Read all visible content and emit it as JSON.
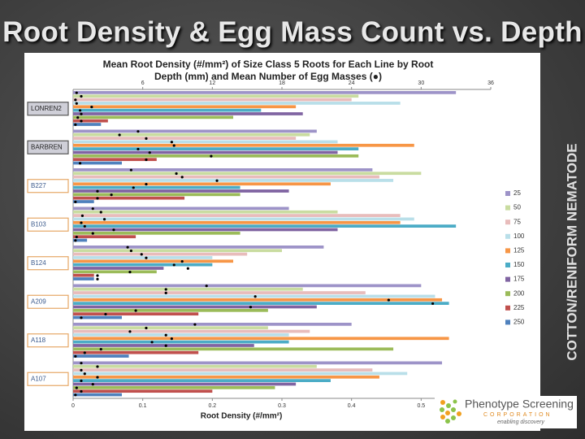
{
  "slide": {
    "title": "Root Density & Egg Mass Count vs. Depth",
    "side_label": "COTTON/RENIFORM NEMATODE"
  },
  "chart_data": {
    "type": "bar",
    "orientation": "horizontal",
    "title": "Mean Root Density (#/mm²) of Size Class 5 Roots for Each Line by Root Depth (mm) and Mean Number of Egg Masses (●)",
    "x_label": "Root Density (#/mm²)",
    "categories": [
      "LONREN2",
      "BARBREN",
      "B227",
      "B103",
      "B124",
      "A209",
      "A118",
      "A107"
    ],
    "xlim": [
      0,
      0.6
    ],
    "xticks": [
      0,
      0.1,
      0.2,
      0.3,
      0.4,
      0.5
    ],
    "x2lim": [
      0,
      36
    ],
    "x2ticks": [
      6,
      12,
      18,
      24,
      30,
      36
    ],
    "legend": "right",
    "series": [
      {
        "name": "25",
        "color": "#9d93c8",
        "values": [
          0.55,
          0.35,
          0.43,
          0.31,
          0.36,
          0.5,
          0.4,
          0.53
        ],
        "egg_masses": [
          0.3,
          5.6,
          5.0,
          1.7,
          4.7,
          11.5,
          10.5,
          0.7
        ]
      },
      {
        "name": "50",
        "color": "#c9dca0",
        "values": [
          0.41,
          0.34,
          0.5,
          0.38,
          0.3,
          0.33,
          0.28,
          0.35
        ],
        "egg_masses": [
          0.7,
          4.0,
          8.9,
          2.4,
          5.0,
          8.0,
          6.3,
          2.1
        ]
      },
      {
        "name": "75",
        "color": "#e8bcbb",
        "values": [
          0.4,
          0.32,
          0.44,
          0.47,
          0.25,
          0.42,
          0.34,
          0.43
        ],
        "egg_masses": [
          0.2,
          6.3,
          9.4,
          0.8,
          5.9,
          8.0,
          4.9,
          0.7
        ]
      },
      {
        "name": "100",
        "color": "#b9dfe9",
        "values": [
          0.47,
          0.38,
          0.46,
          0.49,
          0.2,
          0.52,
          0.31,
          0.48
        ],
        "egg_masses": [
          0.3,
          8.5,
          12.4,
          2.7,
          6.3,
          15.7,
          8.0,
          1.0
        ]
      },
      {
        "name": "125",
        "color": "#f79646",
        "values": [
          0.32,
          0.49,
          0.37,
          0.47,
          0.23,
          0.53,
          0.54,
          0.44
        ],
        "egg_masses": [
          1.6,
          8.7,
          6.3,
          0.7,
          9.4,
          27.2,
          8.5,
          2.1
        ]
      },
      {
        "name": "150",
        "color": "#4bacc6",
        "values": [
          0.27,
          0.41,
          0.24,
          0.55,
          0.2,
          0.54,
          0.31,
          0.37
        ],
        "egg_masses": [
          0.6,
          5.6,
          5.2,
          1.0,
          8.7,
          31.0,
          6.8,
          0.7
        ]
      },
      {
        "name": "175",
        "color": "#8064a2",
        "values": [
          0.33,
          0.38,
          0.31,
          0.38,
          0.13,
          0.35,
          0.26,
          0.32
        ],
        "egg_masses": [
          0.7,
          6.6,
          2.1,
          3.5,
          9.9,
          15.3,
          8.0,
          1.7
        ]
      },
      {
        "name": "200",
        "color": "#9bbb59",
        "values": [
          0.23,
          0.41,
          0.24,
          0.24,
          0.12,
          0.28,
          0.46,
          0.29
        ],
        "egg_masses": [
          0.4,
          11.9,
          3.3,
          1.7,
          4.9,
          5.4,
          2.4,
          0.3
        ]
      },
      {
        "name": "225",
        "color": "#c0504d",
        "values": [
          0.05,
          0.12,
          0.16,
          0.09,
          0.03,
          0.18,
          0.18,
          0.2
        ],
        "egg_masses": [
          0.7,
          6.3,
          2.1,
          0.3,
          2.1,
          2.8,
          1.0,
          0.7
        ]
      },
      {
        "name": "250",
        "color": "#4f81bd",
        "values": [
          0.04,
          0.07,
          0.03,
          0.02,
          0.03,
          0.07,
          0.08,
          0.07
        ],
        "egg_masses": [
          0.2,
          0.6,
          0.2,
          0.2,
          2.1,
          0.7,
          0.2,
          0.2
        ]
      }
    ]
  },
  "logo": {
    "name": "Phenotype Screening",
    "corp": "CORPORATION",
    "tagline": "enabling discovery"
  }
}
